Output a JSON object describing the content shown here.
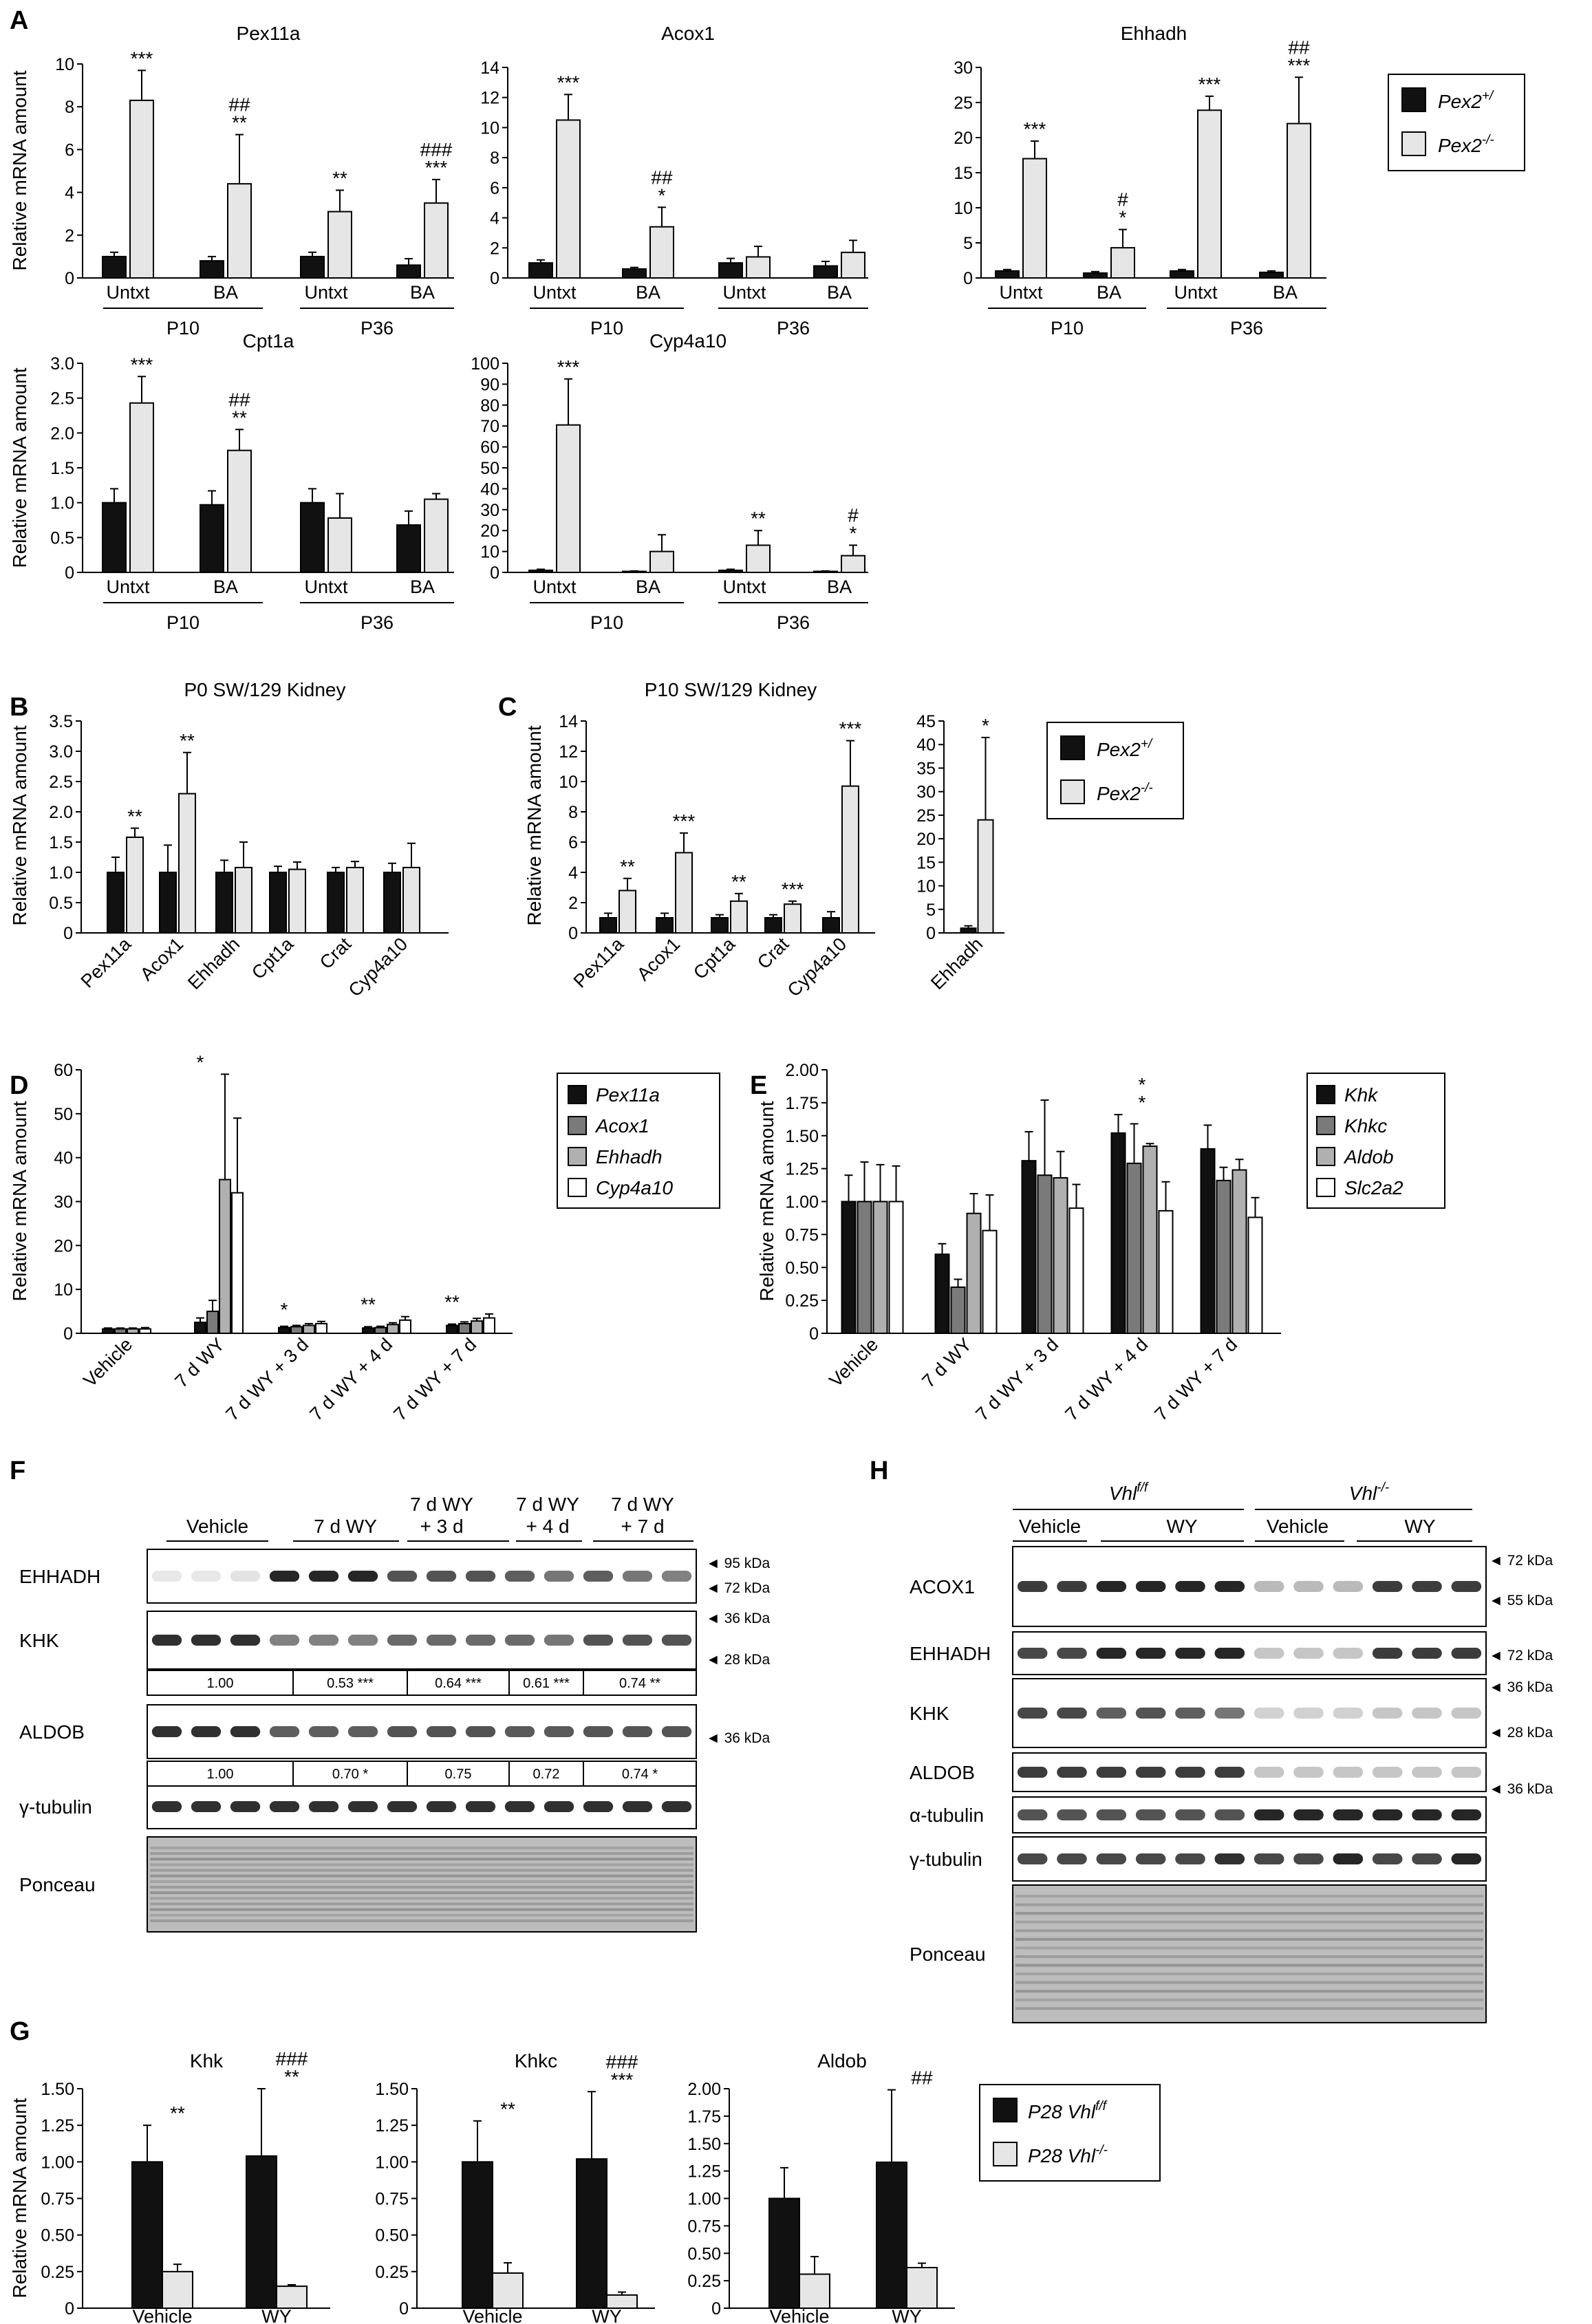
{
  "panel_letters": {
    "a": "A",
    "b": "B",
    "c": "C",
    "d": "D",
    "e": "E",
    "f": "F",
    "g": "G",
    "h": "H"
  },
  "y_axis_label": "Relative mRNA amount",
  "legend_pex2": {
    "het": "Pex2+/",
    "ko": "Pex2-/-",
    "het_base": "Pex2",
    "het_sup": "+/",
    "ko_base": "Pex2",
    "ko_sup": "-/-"
  },
  "legend_wy": [
    "Pex11a",
    "Acox1",
    "Ehhadh",
    "Cyp4a10"
  ],
  "legend_khk": [
    "Khk",
    "Khkc",
    "Aldob",
    "Slc2a2"
  ],
  "legend_vhl": {
    "ff_base": "P28 Vhl",
    "ff_sup": "f/f",
    "ko_base": "P28 Vhl",
    "ko_sup": "-/-"
  },
  "colors": {
    "black": "#111111",
    "light": "#e6e6e6",
    "dark_gray": "#7a7a7a",
    "mid_gray": "#b0b0b0",
    "white": "#ffffff"
  },
  "chart_data": [
    {
      "id": "A-Pex11a",
      "type": "bar",
      "title": "Pex11a",
      "ylim": [
        0,
        10
      ],
      "yticks": [
        0,
        2,
        4,
        6,
        8,
        10
      ],
      "categories": [
        "Untxt",
        "BA",
        "Untxt",
        "BA"
      ],
      "groups": [
        "P10",
        "P36"
      ],
      "series": [
        {
          "name": "Pex2+/",
          "values": [
            1.0,
            0.8,
            1.0,
            0.6
          ],
          "errors": [
            0.2,
            0.2,
            0.2,
            0.3
          ]
        },
        {
          "name": "Pex2-/-",
          "values": [
            8.3,
            4.4,
            3.1,
            3.5
          ],
          "errors": [
            1.4,
            2.3,
            1.0,
            1.1
          ]
        }
      ],
      "annotations": [
        [
          "***"
        ],
        [
          "##",
          "**"
        ],
        [
          "**"
        ],
        [
          "###",
          "***"
        ]
      ]
    },
    {
      "id": "A-Acox1",
      "type": "bar",
      "title": "Acox1",
      "ylim": [
        0,
        14
      ],
      "yticks": [
        0,
        2,
        4,
        6,
        8,
        10,
        12,
        14
      ],
      "categories": [
        "Untxt",
        "BA",
        "Untxt",
        "BA"
      ],
      "groups": [
        "P10",
        "P36"
      ],
      "series": [
        {
          "name": "Pex2+/",
          "values": [
            1.0,
            0.6,
            1.0,
            0.8
          ],
          "errors": [
            0.2,
            0.1,
            0.3,
            0.3
          ]
        },
        {
          "name": "Pex2-/-",
          "values": [
            10.5,
            3.4,
            1.4,
            1.7
          ],
          "errors": [
            1.7,
            1.3,
            0.7,
            0.8
          ]
        }
      ],
      "annotations": [
        [
          "***"
        ],
        [
          "##",
          "*"
        ],
        [],
        []
      ]
    },
    {
      "id": "A-Ehhadh",
      "type": "bar",
      "title": "Ehhadh",
      "ylim": [
        0,
        30
      ],
      "yticks": [
        0,
        5,
        10,
        15,
        20,
        25,
        30
      ],
      "categories": [
        "Untxt",
        "BA",
        "Untxt",
        "BA"
      ],
      "groups": [
        "P10",
        "P36"
      ],
      "series": [
        {
          "name": "Pex2+/",
          "values": [
            1.0,
            0.7,
            1.0,
            0.8
          ],
          "errors": [
            0.2,
            0.2,
            0.2,
            0.2
          ]
        },
        {
          "name": "Pex2-/-",
          "values": [
            17.0,
            4.3,
            23.9,
            22.0
          ],
          "errors": [
            2.5,
            2.6,
            2.0,
            6.6
          ]
        }
      ],
      "annotations": [
        [
          "***"
        ],
        [
          "#",
          "*"
        ],
        [
          "***"
        ],
        [
          "##",
          "***"
        ]
      ]
    },
    {
      "id": "A-Cpt1a",
      "type": "bar",
      "title": "Cpt1a",
      "ylim": [
        0,
        3.0
      ],
      "yticks": [
        "0",
        "0.5",
        "1.0",
        "1.5",
        "2.0",
        "2.5",
        "3.0"
      ],
      "categories": [
        "Untxt",
        "BA",
        "Untxt",
        "BA"
      ],
      "groups": [
        "P10",
        "P36"
      ],
      "series": [
        {
          "name": "Pex2+/",
          "values": [
            1.0,
            0.97,
            1.0,
            0.68
          ],
          "errors": [
            0.2,
            0.2,
            0.2,
            0.2
          ]
        },
        {
          "name": "Pex2-/-",
          "values": [
            2.43,
            1.75,
            0.78,
            1.05
          ],
          "errors": [
            0.38,
            0.3,
            0.35,
            0.08
          ]
        }
      ],
      "annotations": [
        [
          "***"
        ],
        [
          "##",
          "**"
        ],
        [],
        []
      ]
    },
    {
      "id": "A-Cyp4a10",
      "type": "bar",
      "title": "Cyp4a10",
      "ylim": [
        0,
        100
      ],
      "yticks": [
        0,
        10,
        20,
        30,
        40,
        50,
        60,
        70,
        80,
        90,
        100
      ],
      "categories": [
        "Untxt",
        "BA",
        "Untxt",
        "BA"
      ],
      "groups": [
        "P10",
        "P36"
      ],
      "series": [
        {
          "name": "Pex2+/",
          "values": [
            1.0,
            0.5,
            1.0,
            0.5
          ],
          "errors": [
            0.5,
            0.2,
            0.5,
            0.2
          ]
        },
        {
          "name": "Pex2-/-",
          "values": [
            70.5,
            10.0,
            13.0,
            8.0
          ],
          "errors": [
            22.0,
            8.0,
            7.0,
            5.0
          ]
        }
      ],
      "annotations": [
        [
          "***"
        ],
        [],
        [
          "**"
        ],
        [
          "#",
          "*"
        ]
      ]
    },
    {
      "id": "B",
      "type": "bar",
      "title": "P0 SW/129 Kidney",
      "ylim": [
        0,
        3.5
      ],
      "yticks": [
        "0",
        "0.5",
        "1.0",
        "1.5",
        "2.0",
        "2.5",
        "3.0",
        "3.5"
      ],
      "categories": [
        "Pex11a",
        "Acox1",
        "Ehhadh",
        "Cpt1a",
        "Crat",
        "Cyp4a10"
      ],
      "series": [
        {
          "name": "Pex2+/",
          "values": [
            1.0,
            1.0,
            1.0,
            1.0,
            1.0,
            1.0
          ],
          "errors": [
            0.25,
            0.45,
            0.2,
            0.1,
            0.08,
            0.15
          ]
        },
        {
          "name": "Pex2-/-",
          "values": [
            1.58,
            2.3,
            1.08,
            1.05,
            1.08,
            1.08
          ],
          "errors": [
            0.15,
            0.68,
            0.42,
            0.12,
            0.1,
            0.4
          ]
        }
      ],
      "annotations": [
        [
          "**"
        ],
        [
          "**"
        ],
        [],
        [],
        [],
        []
      ]
    },
    {
      "id": "C-left",
      "type": "bar",
      "title": "P10 SW/129 Kidney",
      "ylim": [
        0,
        14
      ],
      "yticks": [
        0,
        2,
        4,
        6,
        8,
        10,
        12,
        14
      ],
      "categories": [
        "Pex11a",
        "Acox1",
        "Cpt1a",
        "Crat",
        "Cyp4a10"
      ],
      "series": [
        {
          "name": "Pex2+/",
          "values": [
            1.0,
            1.0,
            1.0,
            1.0,
            1.0
          ],
          "errors": [
            0.3,
            0.3,
            0.2,
            0.2,
            0.4
          ]
        },
        {
          "name": "Pex2-/-",
          "values": [
            2.8,
            5.3,
            2.1,
            1.9,
            9.7
          ],
          "errors": [
            0.8,
            1.3,
            0.5,
            0.2,
            3.0
          ]
        }
      ],
      "annotations": [
        [
          "**"
        ],
        [
          "***"
        ],
        [
          "**"
        ],
        [
          "***"
        ],
        [
          "***"
        ]
      ]
    },
    {
      "id": "C-right",
      "type": "bar",
      "title": "",
      "ylim": [
        0,
        45
      ],
      "yticks": [
        0,
        5,
        10,
        15,
        20,
        25,
        30,
        35,
        40,
        45
      ],
      "categories": [
        "Ehhadh"
      ],
      "series": [
        {
          "name": "Pex2+/",
          "values": [
            1.0
          ],
          "errors": [
            0.5
          ]
        },
        {
          "name": "Pex2-/-",
          "values": [
            24.0
          ],
          "errors": [
            17.5
          ]
        }
      ],
      "annotations": [
        [
          "*"
        ]
      ]
    },
    {
      "id": "D",
      "type": "bar",
      "title": "",
      "ylim": [
        0,
        60
      ],
      "yticks": [
        0,
        10,
        20,
        30,
        40,
        50,
        60
      ],
      "categories": [
        "Vehicle",
        "7 d WY",
        "7 d WY + 3 d",
        "7 d WY + 4 d",
        "7 d WY + 7 d"
      ],
      "series": [
        {
          "name": "Pex11a",
          "values": [
            1.0,
            2.5,
            1.3,
            1.2,
            1.8
          ],
          "errors": [
            0.2,
            1.0,
            0.3,
            0.3,
            0.3
          ]
        },
        {
          "name": "Acox1",
          "values": [
            1.0,
            5.0,
            1.5,
            1.3,
            2.2
          ],
          "errors": [
            0.2,
            2.5,
            0.3,
            0.3,
            0.4
          ]
        },
        {
          "name": "Ehhadh",
          "values": [
            1.0,
            35.0,
            1.8,
            2.0,
            2.8
          ],
          "errors": [
            0.2,
            24.0,
            0.4,
            0.4,
            0.6
          ]
        },
        {
          "name": "Cyp4a10",
          "values": [
            1.0,
            32.0,
            2.2,
            3.0,
            3.5
          ],
          "errors": [
            0.3,
            17.0,
            0.5,
            0.8,
            0.9
          ]
        }
      ],
      "annotations": [
        [],
        [
          "*"
        ],
        [
          "*"
        ],
        [
          "**"
        ],
        [
          "**"
        ]
      ]
    },
    {
      "id": "E",
      "type": "bar",
      "title": "",
      "ylim": [
        0,
        2.0
      ],
      "yticks": [
        "0",
        "0.25",
        "0.50",
        "0.75",
        "1.00",
        "1.25",
        "1.50",
        "1.75",
        "2.00"
      ],
      "categories": [
        "Vehicle",
        "7 d WY",
        "7 d WY + 3 d",
        "7 d WY + 4 d",
        "7 d WY + 7 d"
      ],
      "series": [
        {
          "name": "Khk",
          "values": [
            1.0,
            0.6,
            1.31,
            1.52,
            1.4
          ],
          "errors": [
            0.2,
            0.08,
            0.22,
            0.14,
            0.18
          ]
        },
        {
          "name": "Khkc",
          "values": [
            1.0,
            0.35,
            1.2,
            1.29,
            1.16
          ],
          "errors": [
            0.3,
            0.06,
            0.57,
            0.3,
            0.1
          ]
        },
        {
          "name": "Aldob",
          "values": [
            1.0,
            0.91,
            1.18,
            1.42,
            1.24
          ],
          "errors": [
            0.28,
            0.15,
            0.2,
            0.02,
            0.08
          ]
        },
        {
          "name": "Slc2a2",
          "values": [
            1.0,
            0.78,
            0.95,
            0.93,
            0.88
          ],
          "errors": [
            0.27,
            0.27,
            0.18,
            0.22,
            0.15
          ]
        }
      ],
      "annotations": [
        [],
        [],
        [],
        [
          "*",
          "*"
        ],
        []
      ]
    },
    {
      "id": "G-Khk",
      "type": "bar",
      "title": "Khk",
      "ylim": [
        0,
        1.5
      ],
      "yticks": [
        "0",
        "0.25",
        "0.50",
        "0.75",
        "1.00",
        "1.25",
        "1.50"
      ],
      "categories": [
        "Vehicle",
        "WY"
      ],
      "series": [
        {
          "name": "P28 Vhl f/f",
          "values": [
            1.0,
            1.04
          ],
          "errors": [
            0.25,
            0.46
          ]
        },
        {
          "name": "P28 Vhl -/-",
          "values": [
            0.25,
            0.15
          ],
          "errors": [
            0.05,
            0.01
          ]
        }
      ],
      "annotations": [
        [
          "**"
        ],
        [
          "###",
          "**"
        ]
      ]
    },
    {
      "id": "G-Khkc",
      "type": "bar",
      "title": "Khkc",
      "ylim": [
        0,
        1.5
      ],
      "yticks": [
        "0",
        "0.25",
        "0.50",
        "0.75",
        "1.00",
        "1.25",
        "1.50"
      ],
      "categories": [
        "Vehicle",
        "WY"
      ],
      "series": [
        {
          "name": "P28 Vhl f/f",
          "values": [
            1.0,
            1.02
          ],
          "errors": [
            0.28,
            0.46
          ]
        },
        {
          "name": "P28 Vhl -/-",
          "values": [
            0.24,
            0.09
          ],
          "errors": [
            0.07,
            0.02
          ]
        }
      ],
      "annotations": [
        [
          "**"
        ],
        [
          "###",
          "***"
        ]
      ]
    },
    {
      "id": "G-Aldob",
      "type": "bar",
      "title": "Aldob",
      "ylim": [
        0,
        2.0
      ],
      "yticks": [
        "0",
        "0.25",
        "0.50",
        "0.75",
        "1.00",
        "1.25",
        "1.50",
        "1.75",
        "2.00"
      ],
      "categories": [
        "Vehicle",
        "WY"
      ],
      "series": [
        {
          "name": "P28 Vhl f/f",
          "values": [
            1.0,
            1.33
          ],
          "errors": [
            0.28,
            0.66
          ]
        },
        {
          "name": "P28 Vhl -/-",
          "values": [
            0.31,
            0.37
          ],
          "errors": [
            0.16,
            0.04
          ]
        }
      ],
      "annotations": [
        [],
        [
          "##"
        ]
      ]
    }
  ],
  "blot_F": {
    "groups": [
      "Vehicle",
      "7 d WY",
      "7 d WY\n+ 3 d",
      "7 d WY\n+ 4 d",
      "7 d WY\n+ 7 d"
    ],
    "rows": [
      {
        "label": "EHHADH",
        "markers": [
          "95 kDa",
          "72 kDa"
        ]
      },
      {
        "label": "KHK",
        "markers": [
          "36 kDa",
          "28 kDa"
        ]
      },
      {
        "label": "ALDOB",
        "markers": [
          "36 kDa"
        ]
      },
      {
        "label": "γ-tubulin",
        "markers": []
      },
      {
        "label": "Ponceau",
        "markers": []
      }
    ],
    "khk_quant": [
      "1.00",
      "0.53 ***",
      "0.64 ***",
      "0.61 ***",
      "0.74 **"
    ],
    "aldob_quant": [
      "1.00",
      "0.70 *",
      "0.75",
      "0.72",
      "0.74 *"
    ]
  },
  "blot_H": {
    "genotypes": [
      "Vhl f/f",
      "Vhl -/-"
    ],
    "treatments": [
      "Vehicle",
      "WY",
      "Vehicle",
      "WY"
    ],
    "rows": [
      {
        "label": "ACOX1",
        "markers": [
          "72 kDa",
          "55 kDa"
        ]
      },
      {
        "label": "EHHADH",
        "markers": [
          "72 kDa"
        ]
      },
      {
        "label": "KHK",
        "markers": [
          "36 kDa",
          "28 kDa"
        ]
      },
      {
        "label": "ALDOB",
        "markers": [
          "36 kDa"
        ]
      },
      {
        "label": "α-tubulin",
        "markers": []
      },
      {
        "label": "γ-tubulin",
        "markers": []
      },
      {
        "label": "Ponceau",
        "markers": []
      }
    ]
  }
}
